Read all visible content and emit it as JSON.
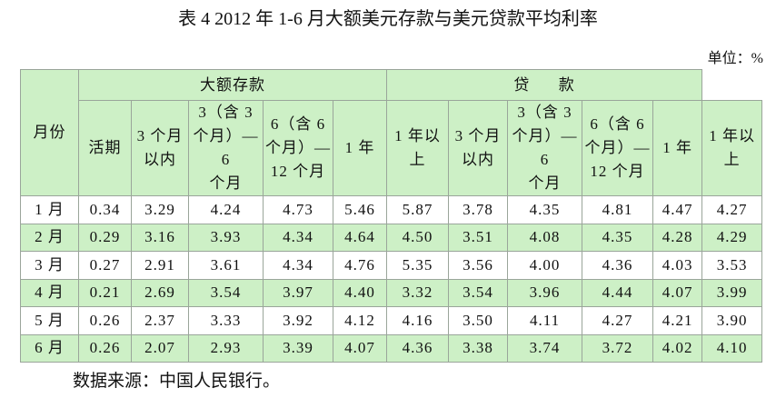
{
  "title": "表 4 2012 年 1-6 月大额美元存款与美元贷款平均利率",
  "unit": "单位：%",
  "table": {
    "header": {
      "month": "月份",
      "groups": [
        "大额存款",
        "贷      款"
      ],
      "columns": [
        "活期",
        "3 个月\n以内",
        "3（含 3\n个月）—6\n个月",
        "6（含 6\n个月）—\n12 个月",
        "1 年",
        "1 年以\n上",
        "3 个月\n以内",
        "3（含 3\n个月）—6\n个月",
        "6（含 6\n个月）—\n12 个月",
        "1 年",
        "1 年以\n上"
      ]
    },
    "rows": [
      [
        "1 月",
        "0.34",
        "3.29",
        "4.24",
        "4.73",
        "5.46",
        "5.87",
        "3.78",
        "4.35",
        "4.81",
        "4.47",
        "4.27"
      ],
      [
        "2 月",
        "0.29",
        "3.16",
        "3.93",
        "4.34",
        "4.64",
        "4.50",
        "3.51",
        "4.08",
        "4.35",
        "4.28",
        "4.29"
      ],
      [
        "3 月",
        "0.27",
        "2.91",
        "3.61",
        "4.34",
        "4.76",
        "5.35",
        "3.56",
        "4.00",
        "4.36",
        "4.03",
        "3.53"
      ],
      [
        "4 月",
        "0.21",
        "2.69",
        "3.54",
        "3.97",
        "4.40",
        "3.32",
        "3.54",
        "3.96",
        "4.44",
        "4.07",
        "3.99"
      ],
      [
        "5 月",
        "0.26",
        "2.37",
        "3.33",
        "3.92",
        "4.12",
        "4.16",
        "3.50",
        "4.11",
        "4.27",
        "4.21",
        "3.90"
      ],
      [
        "6 月",
        "0.26",
        "2.07",
        "2.93",
        "3.39",
        "4.07",
        "4.36",
        "3.38",
        "3.74",
        "3.72",
        "4.02",
        "4.10"
      ]
    ]
  },
  "source": "数据来源：中国人民银行。"
}
